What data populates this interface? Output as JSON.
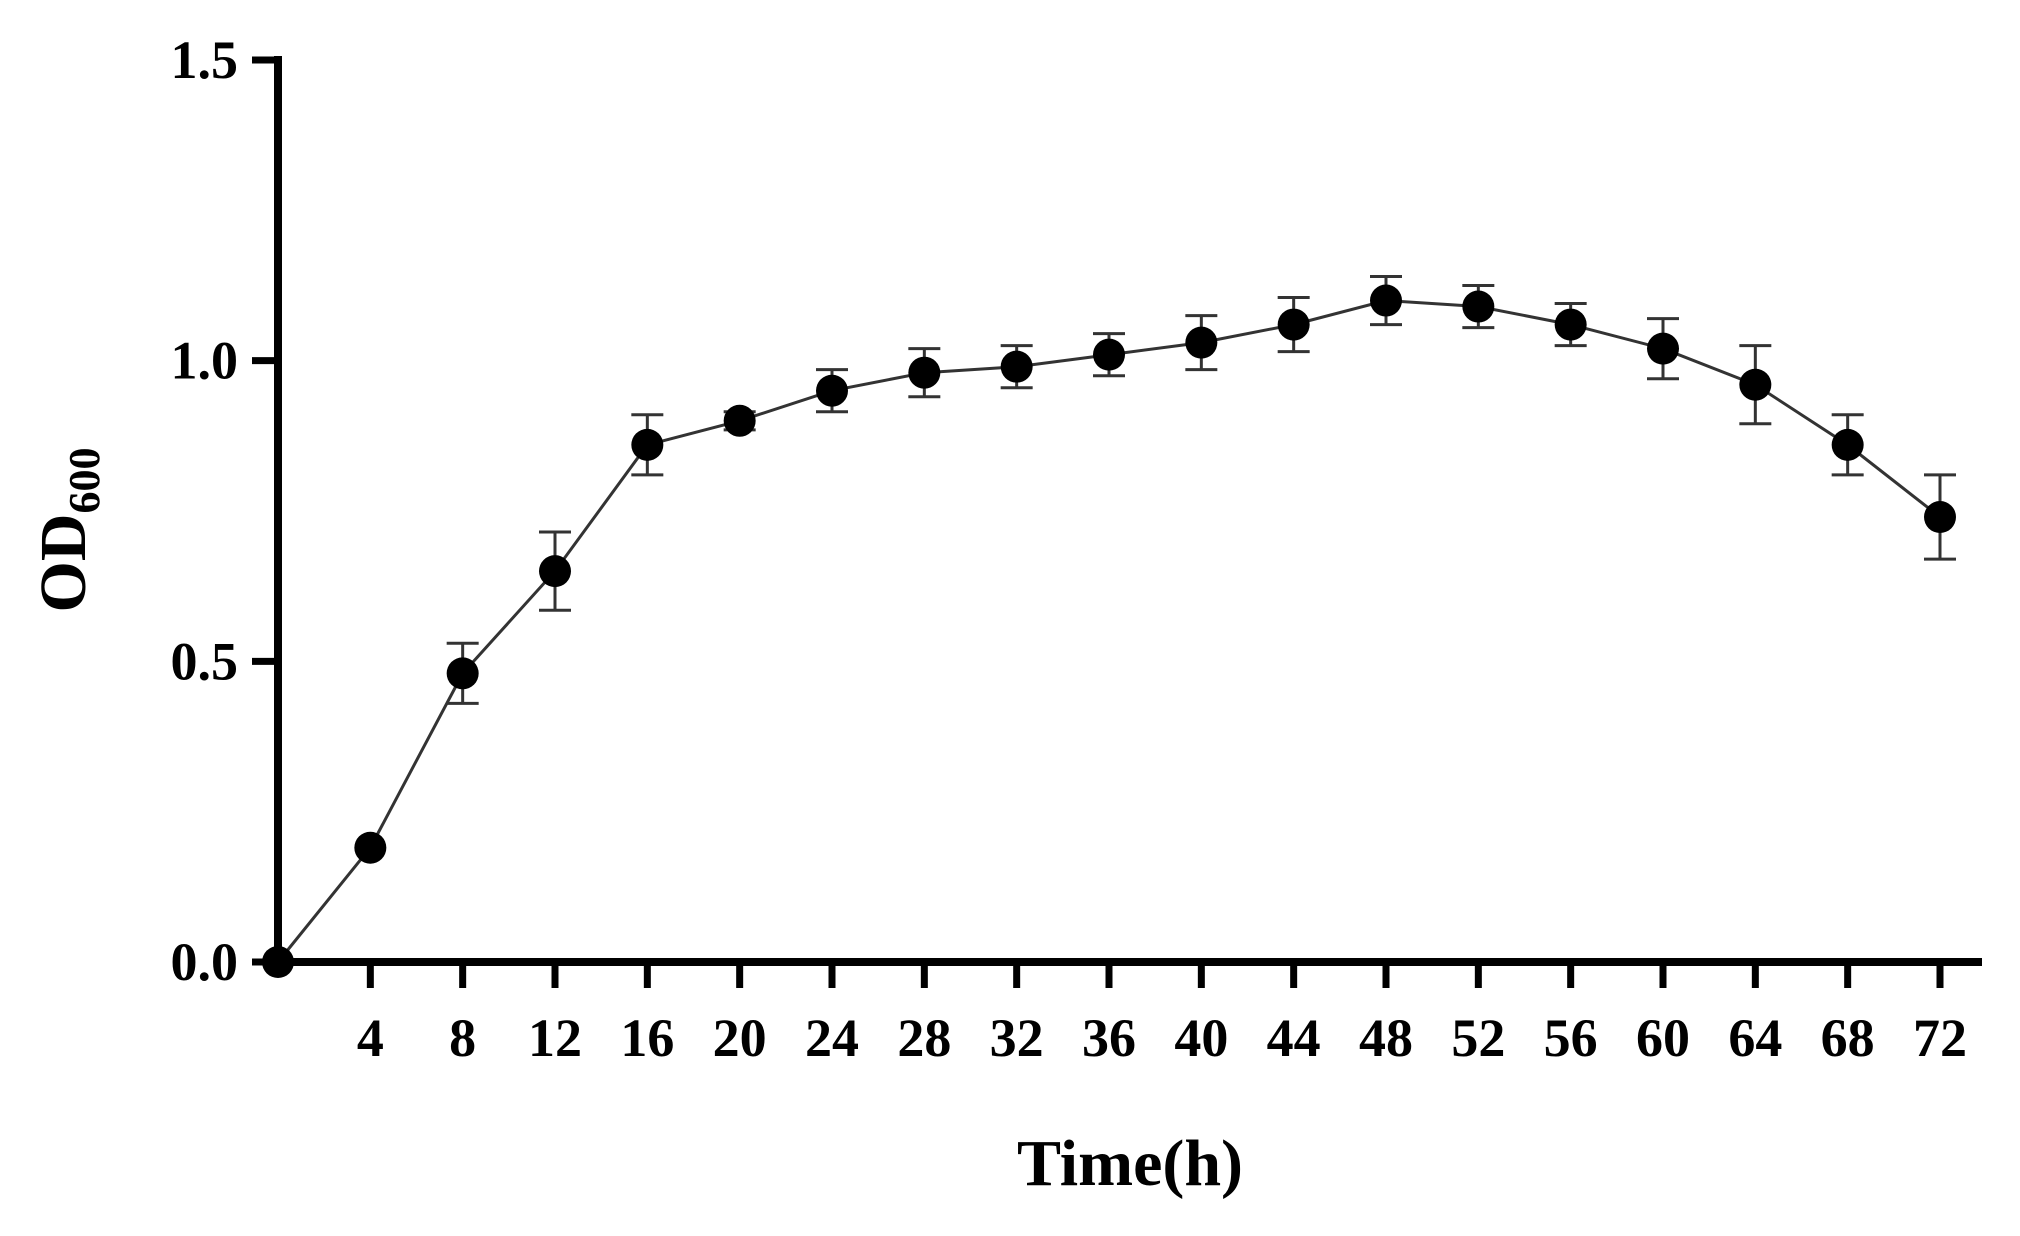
{
  "chart_data": {
    "type": "line",
    "xlabel": "Time(h)",
    "ylabel": {
      "main": "OD",
      "sub": "600"
    },
    "xlim": [
      0,
      72
    ],
    "ylim": [
      0,
      1.5
    ],
    "x_ticks": [
      4,
      8,
      12,
      16,
      20,
      24,
      28,
      32,
      36,
      40,
      44,
      48,
      52,
      56,
      60,
      64,
      68,
      72
    ],
    "y_ticks": [
      "0.0",
      "0.5",
      "1.0",
      "1.5"
    ],
    "grid": false,
    "legend": "none",
    "marker": "filled-circle",
    "error_bars": true,
    "series": [
      {
        "x": [
          0,
          4,
          8,
          12,
          16,
          20,
          24,
          28,
          32,
          36,
          40,
          44,
          48,
          52,
          56,
          60,
          64,
          68,
          72
        ],
        "y": [
          0.0,
          0.19,
          0.48,
          0.65,
          0.86,
          0.9,
          0.95,
          0.98,
          0.99,
          1.01,
          1.03,
          1.06,
          1.1,
          1.09,
          1.06,
          1.02,
          0.96,
          0.86,
          0.74
        ],
        "err": [
          0,
          0,
          0.05,
          0.065,
          0.05,
          0.015,
          0.035,
          0.04,
          0.035,
          0.035,
          0.045,
          0.045,
          0.04,
          0.035,
          0.035,
          0.05,
          0.065,
          0.05,
          0.07
        ]
      }
    ]
  }
}
